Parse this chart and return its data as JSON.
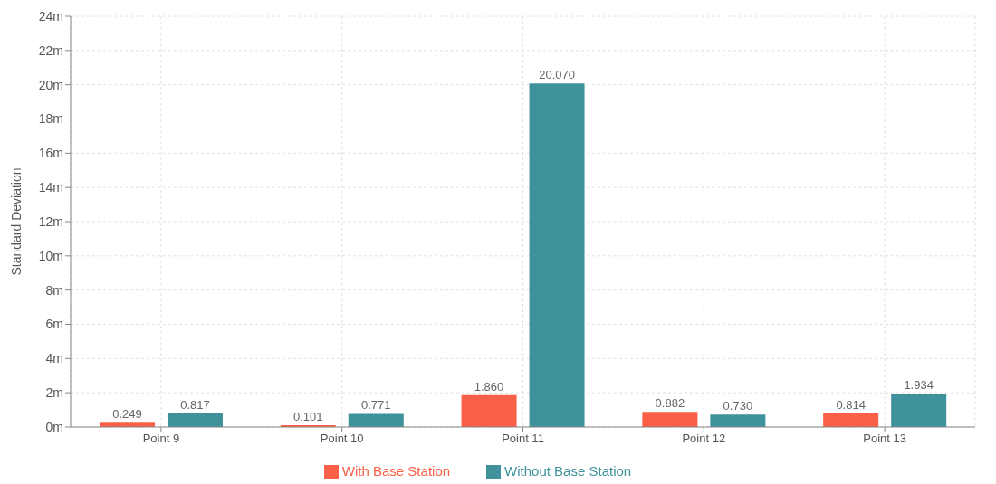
{
  "chart_data": {
    "type": "bar",
    "ylabel": "Standard Deviation",
    "categories": [
      "Point 9",
      "Point 10",
      "Point 11",
      "Point 12",
      "Point 13"
    ],
    "series": [
      {
        "name": "With Base Station",
        "color": "#fa5f47",
        "values": [
          0.249,
          0.101,
          1.86,
          0.882,
          0.814
        ],
        "value_labels": [
          "0.249",
          "0.101",
          "1.860",
          "0.882",
          "0.814"
        ]
      },
      {
        "name": "Without Base Station",
        "color": "#3f929c",
        "values": [
          0.817,
          0.771,
          20.07,
          0.73,
          1.934
        ],
        "value_labels": [
          "0.817",
          "0.771",
          "20.070",
          "0.730",
          "1.934"
        ]
      }
    ],
    "ylim": [
      0,
      24
    ],
    "yticks": [
      {
        "value": 0,
        "label": "0m"
      },
      {
        "value": 2,
        "label": "2m"
      },
      {
        "value": 4,
        "label": "4m"
      },
      {
        "value": 6,
        "label": "6m"
      },
      {
        "value": 8,
        "label": "8m"
      },
      {
        "value": 10,
        "label": "10m"
      },
      {
        "value": 12,
        "label": "12m"
      },
      {
        "value": 14,
        "label": "14m"
      },
      {
        "value": 16,
        "label": "16m"
      },
      {
        "value": 18,
        "label": "18m"
      },
      {
        "value": 20,
        "label": "20m"
      },
      {
        "value": 22,
        "label": "22m"
      },
      {
        "value": 24,
        "label": "24m"
      }
    ],
    "grid": true,
    "legend": "bottom"
  }
}
